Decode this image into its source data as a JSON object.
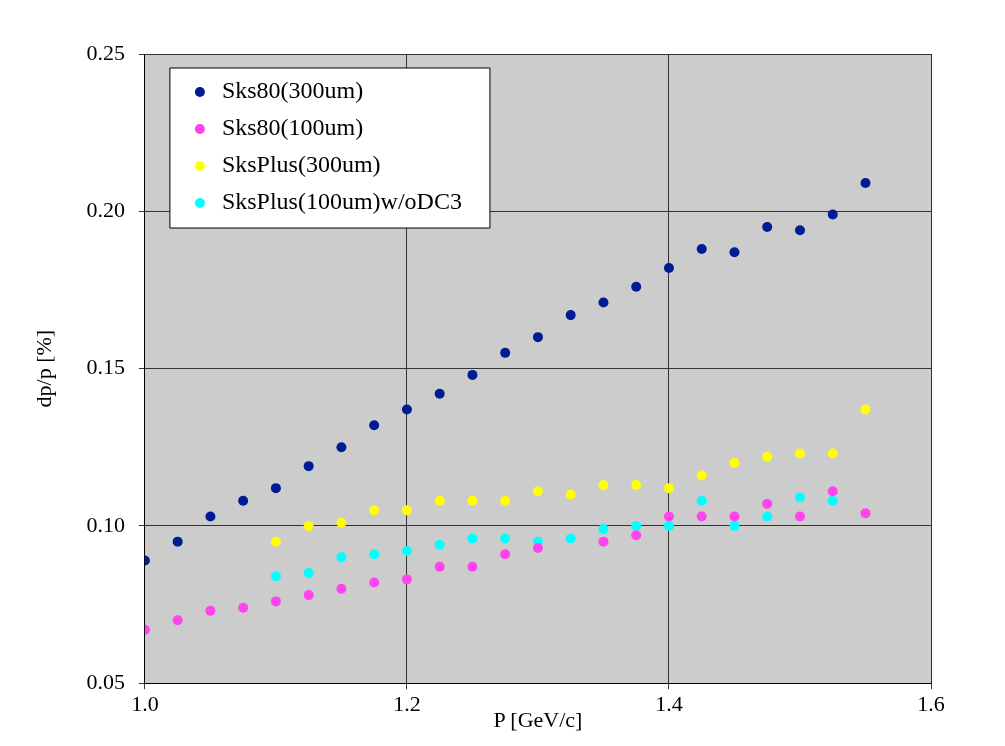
{
  "chart_data": {
    "type": "scatter",
    "xlabel": "P [GeV/c]",
    "ylabel": "dp/p [%]",
    "xlim": [
      1.0,
      1.6
    ],
    "xticks": [
      {
        "value": 1.0,
        "label": "1.0"
      },
      {
        "value": 1.2,
        "label": "1.2"
      },
      {
        "value": 1.4,
        "label": "1.4"
      },
      {
        "value": 1.6,
        "label": "1.6"
      }
    ],
    "ylim": [
      0.05,
      0.25
    ],
    "yticks": [
      0.05,
      {
        "value": 0.1,
        "label": "0.10"
      },
      0.15,
      {
        "value": 0.2,
        "label": "0.20"
      },
      0.25
    ],
    "grid": true,
    "legend": "top left",
    "marker": "circle",
    "series": [
      {
        "name": "Sks80(300um)",
        "color": "#001c94",
        "x": [
          1.0,
          1.025,
          1.05,
          1.075,
          1.1,
          1.125,
          1.15,
          1.175,
          1.2,
          1.225,
          1.25,
          1.275,
          1.3,
          1.325,
          1.35,
          1.375,
          1.4,
          1.425,
          1.45,
          1.475,
          1.5,
          1.525,
          1.55
        ],
        "values": [
          0.089,
          0.095,
          0.103,
          0.108,
          0.112,
          0.119,
          0.125,
          0.132,
          0.137,
          0.142,
          0.148,
          0.155,
          0.16,
          0.167,
          0.171,
          0.176,
          0.182,
          0.188,
          0.187,
          0.195,
          0.194,
          0.199,
          0.209
        ]
      },
      {
        "name": "Sks80(100um)",
        "color": "#ff44ee",
        "x": [
          1.0,
          1.025,
          1.05,
          1.075,
          1.1,
          1.125,
          1.15,
          1.175,
          1.2,
          1.225,
          1.25,
          1.275,
          1.3,
          1.325,
          1.35,
          1.375,
          1.4,
          1.425,
          1.45,
          1.475,
          1.5,
          1.525,
          1.55
        ],
        "values": [
          0.067,
          0.07,
          0.073,
          0.074,
          0.076,
          0.078,
          0.08,
          0.082,
          0.083,
          0.087,
          0.087,
          0.091,
          0.093,
          null,
          0.095,
          0.097,
          0.103,
          0.103,
          0.103,
          0.107,
          0.103,
          0.111,
          0.104
        ]
      },
      {
        "name": "SksPlus(300um)",
        "color": "#ffff00",
        "x": [
          1.1,
          1.125,
          1.15,
          1.175,
          1.2,
          1.225,
          1.25,
          1.275,
          1.3,
          1.325,
          1.35,
          1.375,
          1.4,
          1.425,
          1.45,
          1.475,
          1.5,
          1.525,
          1.55
        ],
        "values": [
          0.095,
          0.1,
          0.101,
          0.105,
          0.105,
          0.108,
          0.108,
          0.108,
          0.111,
          0.11,
          0.113,
          0.113,
          0.112,
          0.116,
          0.12,
          0.122,
          0.123,
          0.123,
          0.137
        ]
      },
      {
        "name": "SksPlus(100um)w/oDC3",
        "color": "#00ffff",
        "x": [
          1.1,
          1.125,
          1.15,
          1.175,
          1.2,
          1.225,
          1.25,
          1.275,
          1.3,
          1.325,
          1.35,
          1.375,
          1.4,
          1.425,
          1.45,
          1.475,
          1.5,
          1.525
        ],
        "values": [
          0.084,
          0.085,
          0.09,
          0.091,
          0.092,
          0.094,
          0.096,
          0.096,
          0.095,
          0.096,
          0.099,
          0.1,
          0.1,
          0.108,
          0.1,
          0.103,
          0.109,
          0.108
        ]
      }
    ]
  }
}
